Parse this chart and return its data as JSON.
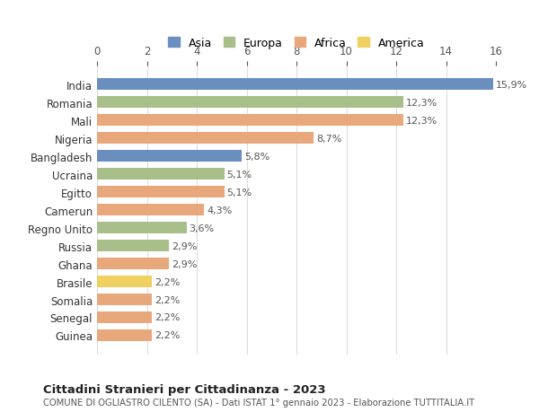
{
  "countries": [
    "India",
    "Romania",
    "Mali",
    "Nigeria",
    "Bangladesh",
    "Ucraina",
    "Egitto",
    "Camerun",
    "Regno Unito",
    "Russia",
    "Ghana",
    "Brasile",
    "Somalia",
    "Senegal",
    "Guinea"
  ],
  "values": [
    15.9,
    12.3,
    12.3,
    8.7,
    5.8,
    5.1,
    5.1,
    4.3,
    3.6,
    2.9,
    2.9,
    2.2,
    2.2,
    2.2,
    2.2
  ],
  "labels": [
    "15,9%",
    "12,3%",
    "12,3%",
    "8,7%",
    "5,8%",
    "5,1%",
    "5,1%",
    "4,3%",
    "3,6%",
    "2,9%",
    "2,9%",
    "2,2%",
    "2,2%",
    "2,2%",
    "2,2%"
  ],
  "colors": [
    "#6a8fbf",
    "#a8bf8a",
    "#e8a87c",
    "#e8a87c",
    "#6a8fbf",
    "#a8bf8a",
    "#e8a87c",
    "#e8a87c",
    "#a8bf8a",
    "#a8bf8a",
    "#e8a87c",
    "#f0d060",
    "#e8a87c",
    "#e8a87c",
    "#e8a87c"
  ],
  "legend_labels": [
    "Asia",
    "Europa",
    "Africa",
    "America"
  ],
  "legend_colors": [
    "#6a8fbf",
    "#a8bf8a",
    "#e8a87c",
    "#f0d060"
  ],
  "title": "Cittadini Stranieri per Cittadinanza - 2023",
  "subtitle": "COMUNE DI OGLIASTRO CILENTO (SA) - Dati ISTAT 1° gennaio 2023 - Elaborazione TUTTITALIA.IT",
  "xlim": [
    0,
    16
  ],
  "xticks": [
    0,
    2,
    4,
    6,
    8,
    10,
    12,
    14,
    16
  ],
  "background_color": "#ffffff",
  "grid_color": "#dddddd"
}
